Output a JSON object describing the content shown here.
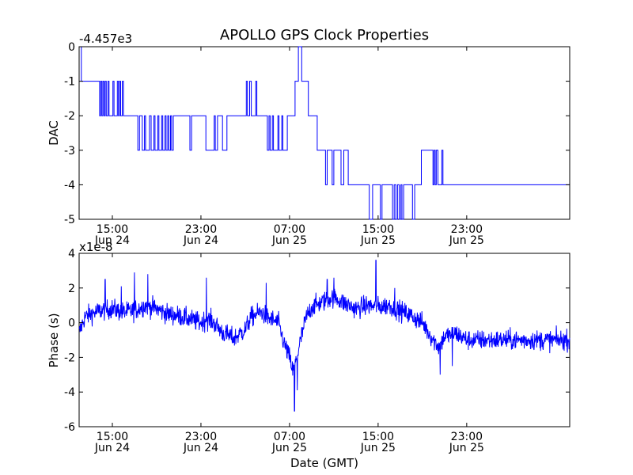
{
  "figure": {
    "title": "APOLLO GPS Clock Properties",
    "xlabel": "Date (GMT)",
    "series_color": "#0000ff"
  },
  "chart_data": [
    {
      "type": "line",
      "name": "dac",
      "ylabel": "DAC",
      "offset_label": "-4.457e3",
      "xlim": [
        12.0,
        56.3
      ],
      "ylim": [
        -5,
        0
      ],
      "y_ticks": [
        {
          "value": 0,
          "label": "0"
        },
        {
          "value": -1,
          "label": "-1"
        },
        {
          "value": -2,
          "label": "-2"
        },
        {
          "value": -3,
          "label": "-3"
        },
        {
          "value": -4,
          "label": "-4"
        },
        {
          "value": -5,
          "label": "-5"
        }
      ],
      "x_ticks": [
        {
          "value": 15,
          "time": "15:00",
          "date": "Jun 24"
        },
        {
          "value": 23,
          "time": "23:00",
          "date": "Jun 24"
        },
        {
          "value": 31,
          "time": "07:00",
          "date": "Jun 25"
        },
        {
          "value": 39,
          "time": "15:00",
          "date": "Jun 25"
        },
        {
          "value": 47,
          "time": "23:00",
          "date": "Jun 25"
        }
      ],
      "step_points": [
        [
          12.0,
          0
        ],
        [
          12.2,
          -1
        ],
        [
          13.85,
          -2
        ],
        [
          13.95,
          -1
        ],
        [
          14.05,
          -2
        ],
        [
          14.15,
          -1
        ],
        [
          14.25,
          -2
        ],
        [
          14.35,
          -1
        ],
        [
          14.45,
          -2
        ],
        [
          14.6,
          -1
        ],
        [
          14.7,
          -2
        ],
        [
          15.0,
          -2
        ],
        [
          15.05,
          -1
        ],
        [
          15.15,
          -2
        ],
        [
          15.45,
          -1
        ],
        [
          15.55,
          -2
        ],
        [
          15.65,
          -1
        ],
        [
          15.75,
          -2
        ],
        [
          15.9,
          -1
        ],
        [
          16.0,
          -2
        ],
        [
          17.3,
          -3
        ],
        [
          17.45,
          -2
        ],
        [
          17.7,
          -3
        ],
        [
          17.9,
          -2
        ],
        [
          18.0,
          -3
        ],
        [
          18.2,
          -3
        ],
        [
          18.35,
          -2
        ],
        [
          18.5,
          -3
        ],
        [
          18.75,
          -2
        ],
        [
          18.85,
          -3
        ],
        [
          19.1,
          -2
        ],
        [
          19.2,
          -3
        ],
        [
          19.45,
          -2
        ],
        [
          19.55,
          -3
        ],
        [
          19.75,
          -2
        ],
        [
          19.85,
          -3
        ],
        [
          20.0,
          -2
        ],
        [
          20.1,
          -3
        ],
        [
          20.25,
          -2
        ],
        [
          20.35,
          -3
        ],
        [
          20.5,
          -2
        ],
        [
          22.0,
          -3
        ],
        [
          22.15,
          -2
        ],
        [
          23.45,
          -3
        ],
        [
          24.2,
          -2
        ],
        [
          24.3,
          -3
        ],
        [
          24.5,
          -2
        ],
        [
          24.95,
          -3
        ],
        [
          25.35,
          -2
        ],
        [
          27.1,
          -1
        ],
        [
          27.2,
          -2
        ],
        [
          27.4,
          -1
        ],
        [
          27.55,
          -2
        ],
        [
          27.95,
          -1
        ],
        [
          28.05,
          -2
        ],
        [
          29.0,
          -3
        ],
        [
          29.15,
          -2
        ],
        [
          29.25,
          -3
        ],
        [
          29.45,
          -2
        ],
        [
          29.55,
          -3
        ],
        [
          29.95,
          -2
        ],
        [
          30.05,
          -3
        ],
        [
          30.3,
          -2
        ],
        [
          30.4,
          -3
        ],
        [
          30.8,
          -2
        ],
        [
          31.5,
          -1
        ],
        [
          31.8,
          0
        ],
        [
          32.1,
          -1
        ],
        [
          32.7,
          -2
        ],
        [
          33.3,
          -2
        ],
        [
          33.5,
          -3
        ],
        [
          34.25,
          -4
        ],
        [
          34.4,
          -3
        ],
        [
          34.85,
          -4
        ],
        [
          35.0,
          -3
        ],
        [
          35.65,
          -4
        ],
        [
          35.9,
          -3
        ],
        [
          36.3,
          -4
        ],
        [
          38.2,
          -5
        ],
        [
          38.5,
          -4
        ],
        [
          39.2,
          -5
        ],
        [
          39.35,
          -4
        ],
        [
          40.3,
          -5
        ],
        [
          40.45,
          -4
        ],
        [
          40.6,
          -5
        ],
        [
          40.75,
          -4
        ],
        [
          40.9,
          -5
        ],
        [
          41.05,
          -4
        ],
        [
          41.15,
          -5
        ],
        [
          41.3,
          -4
        ],
        [
          42.1,
          -5
        ],
        [
          42.3,
          -4
        ],
        [
          42.9,
          -3
        ],
        [
          43.95,
          -4
        ],
        [
          44.05,
          -3
        ],
        [
          44.15,
          -4
        ],
        [
          44.25,
          -3
        ],
        [
          44.4,
          -4
        ],
        [
          44.75,
          -3
        ],
        [
          44.85,
          -4
        ],
        [
          45.1,
          -4
        ]
      ]
    },
    {
      "type": "line",
      "name": "phase",
      "ylabel": "Phase (s)",
      "offset_label": "x1e-8",
      "xlim": [
        12.0,
        56.3
      ],
      "ylim": [
        -6,
        4
      ],
      "y_ticks": [
        {
          "value": 4,
          "label": "4"
        },
        {
          "value": 2,
          "label": "2"
        },
        {
          "value": 0,
          "label": "0"
        },
        {
          "value": -2,
          "label": "-2"
        },
        {
          "value": -4,
          "label": "-4"
        },
        {
          "value": -6,
          "label": "-6"
        }
      ],
      "x_ticks": [
        {
          "value": 15,
          "time": "15:00",
          "date": "Jun 24"
        },
        {
          "value": 23,
          "time": "23:00",
          "date": "Jun 24"
        },
        {
          "value": 31,
          "time": "07:00",
          "date": "Jun 25"
        },
        {
          "value": 39,
          "time": "15:00",
          "date": "Jun 25"
        },
        {
          "value": 47,
          "time": "23:00",
          "date": "Jun 25"
        }
      ],
      "trend": [
        [
          12.0,
          -0.6
        ],
        [
          12.5,
          0.3
        ],
        [
          13.0,
          0.5
        ],
        [
          14.0,
          0.7
        ],
        [
          15.0,
          0.8
        ],
        [
          16.0,
          0.6
        ],
        [
          17.0,
          0.7
        ],
        [
          18.0,
          1.0
        ],
        [
          19.0,
          0.8
        ],
        [
          20.0,
          0.5
        ],
        [
          21.0,
          0.4
        ],
        [
          22.0,
          0.2
        ],
        [
          22.5,
          0.1
        ],
        [
          23.0,
          0.0
        ],
        [
          23.5,
          0.2
        ],
        [
          24.0,
          0.1
        ],
        [
          25.0,
          -0.6
        ],
        [
          26.0,
          -0.9
        ],
        [
          27.0,
          -0.4
        ],
        [
          27.5,
          0.3
        ],
        [
          28.0,
          0.5
        ],
        [
          28.5,
          0.6
        ],
        [
          29.0,
          0.3
        ],
        [
          30.0,
          0.0
        ],
        [
          30.5,
          -1.2
        ],
        [
          31.0,
          -2.0
        ],
        [
          31.3,
          -2.8
        ],
        [
          31.6,
          -2.2
        ],
        [
          32.0,
          -1.0
        ],
        [
          32.5,
          0.3
        ],
        [
          33.0,
          0.9
        ],
        [
          34.0,
          1.2
        ],
        [
          35.0,
          1.5
        ],
        [
          36.0,
          1.1
        ],
        [
          37.0,
          0.8
        ],
        [
          38.0,
          1.0
        ],
        [
          39.0,
          0.9
        ],
        [
          40.0,
          1.0
        ],
        [
          41.0,
          0.7
        ],
        [
          42.0,
          0.4
        ],
        [
          43.0,
          0.0
        ],
        [
          44.0,
          -1.0
        ],
        [
          44.5,
          -1.4
        ],
        [
          45.0,
          -0.8
        ],
        [
          46.0,
          -0.6
        ],
        [
          47.0,
          -1.0
        ]
      ],
      "noise_amplitude": 0.55,
      "spikes": [
        [
          14.35,
          2.5
        ],
        [
          15.8,
          2.1
        ],
        [
          17.0,
          2.9
        ],
        [
          18.2,
          2.8
        ],
        [
          23.5,
          2.6
        ],
        [
          28.9,
          2.3
        ],
        [
          31.45,
          -5.1
        ],
        [
          31.7,
          -3.9
        ],
        [
          34.4,
          2.5
        ],
        [
          35.0,
          2.6
        ],
        [
          38.8,
          3.6
        ],
        [
          40.5,
          2.0
        ],
        [
          44.6,
          -3.0
        ],
        [
          45.7,
          -2.5
        ]
      ]
    }
  ]
}
